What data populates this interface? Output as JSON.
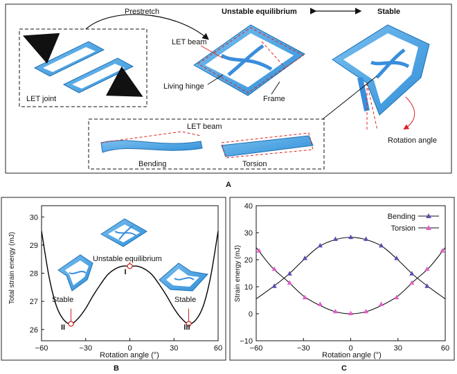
{
  "panelA": {
    "prestretch": "Prestretch",
    "unstable": "Unstable equilibrium",
    "stable": "Stable",
    "let_beam": "LET beam",
    "living_hinge": "Living hinge",
    "frame": "Frame",
    "let_joint": "LET joint",
    "rotation_angle": "Rotation angle",
    "inset_title": "LET beam",
    "bending": "Bending",
    "torsion": "Torsion",
    "label": "A"
  },
  "panelB": {
    "label": "B",
    "ylabel": "Total strain energy (mJ)",
    "xlabel": "Rotation angle (°)",
    "unstable_text": "Unstable equilibrium",
    "stable_left": "Stable",
    "stable_right": "Stable",
    "marker_I": "I",
    "marker_II": "II",
    "marker_III": "III"
  },
  "panelC": {
    "label": "C",
    "ylabel": "Strain energy (mJ)",
    "xlabel": "Rotation angle (°)",
    "legend_bending": "Bending",
    "legend_torsion": "Torsion"
  },
  "colors": {
    "bending": "#5b4fb0",
    "torsion": "#e060c8",
    "curve": "#000000",
    "marker": "#cc2222",
    "blue": "#4aa3e8"
  },
  "chart_data": [
    {
      "type": "line",
      "xlabel": "Rotation angle (°)",
      "ylabel": "Total strain energy (mJ)",
      "xlim": [
        -60,
        60
      ],
      "ylim": [
        25.6,
        30.4
      ],
      "xticks": [
        -60,
        -30,
        0,
        30,
        60
      ],
      "yticks": [
        26,
        27,
        28,
        29,
        30
      ],
      "series": [
        {
          "x": [
            -60,
            -55,
            -50,
            -45,
            -40,
            -35,
            -30,
            -25,
            -20,
            -15,
            -10,
            -5,
            0,
            5,
            10,
            15,
            20,
            25,
            30,
            35,
            40,
            45,
            50,
            55,
            60
          ],
          "values": [
            29.5,
            27.9,
            26.85,
            26.35,
            26.2,
            26.4,
            26.75,
            27.2,
            27.6,
            27.95,
            28.15,
            28.25,
            28.25,
            28.25,
            28.15,
            27.95,
            27.6,
            27.2,
            26.75,
            26.4,
            26.2,
            26.35,
            26.85,
            27.9,
            29.5
          ]
        }
      ],
      "markers": [
        {
          "x": 0,
          "y": 28.25
        },
        {
          "x": -40,
          "y": 26.2
        },
        {
          "x": 40,
          "y": 26.2
        }
      ]
    },
    {
      "type": "line",
      "xlabel": "Rotation angle (°)",
      "ylabel": "Strain energy (mJ)",
      "xlim": [
        -60,
        60
      ],
      "ylim": [
        -10,
        40
      ],
      "xticks": [
        -60,
        -30,
        0,
        30,
        60
      ],
      "yticks": [
        -10,
        0,
        10,
        20,
        30,
        40
      ],
      "legend": "top-right",
      "series": [
        {
          "name": "Bending",
          "x": [
            -48.5,
            -38.8,
            -29.1,
            -19.4,
            -9.7,
            0,
            9.7,
            19.4,
            29.1,
            38.8,
            48.5
          ],
          "values": [
            10.2,
            14.8,
            20.5,
            25.2,
            27.6,
            28.3,
            27.6,
            25.2,
            20.5,
            14.8,
            10.2
          ]
        },
        {
          "name": "Torsion",
          "x": [
            -58.2,
            -48.5,
            -38.8,
            -29.1,
            -19.4,
            -9.7,
            0,
            9.7,
            19.4,
            29.1,
            38.8,
            48.5,
            58.2
          ],
          "values": [
            23.3,
            16.5,
            11.4,
            6.0,
            3.5,
            0.8,
            0.1,
            0.8,
            3.5,
            6.0,
            11.4,
            16.5,
            23.3
          ]
        }
      ],
      "curves": [
        {
          "x": [
            -60,
            -50,
            -40,
            -30,
            -20,
            -10,
            0,
            10,
            20,
            30,
            40,
            50,
            60
          ],
          "values": [
            5.5,
            9.7,
            14.3,
            19.9,
            24.9,
            27.4,
            28.3,
            27.4,
            24.9,
            19.9,
            14.3,
            9.7,
            5.5
          ]
        },
        {
          "x": [
            -60,
            -50,
            -40,
            -30,
            -20,
            -10,
            0,
            10,
            20,
            30,
            40,
            50,
            60
          ],
          "values": [
            24.5,
            17.2,
            12.0,
            6.6,
            3.2,
            0.8,
            0,
            0.8,
            3.2,
            6.6,
            12.0,
            17.2,
            24.5
          ]
        }
      ]
    }
  ]
}
